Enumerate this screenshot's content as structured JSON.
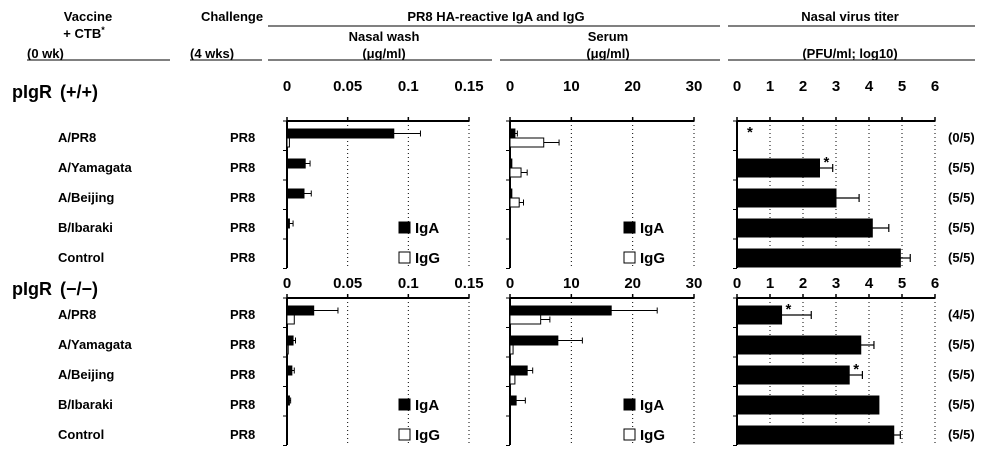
{
  "headers": {
    "vaccine_line1": "Vaccine",
    "vaccine_line2": "+ CTB",
    "vaccine_sup": "*",
    "vaccine_line3": "(0 wk)",
    "challenge_line1": "Challenge",
    "challenge_line3": "(4 wks)",
    "reactive_title": "PR8 HA-reactive IgA and IgG",
    "nasal_wash_title": "Nasal wash",
    "nasal_wash_unit": "(μg/ml)",
    "serum_title": "Serum",
    "serum_unit": "(μg/ml)",
    "virus_title": "Nasal virus titer",
    "virus_unit": "(PFU/ml; log10)"
  },
  "chart_data": {
    "type": "bar",
    "orientation": "horizontal",
    "panels": [
      {
        "key": "nasal",
        "title": "Nasal wash",
        "unit": "(μg/ml)",
        "xlim": [
          0,
          0.15
        ],
        "ticks": [
          "0",
          "0.05",
          "0.1",
          "0.15"
        ],
        "legend": [
          "IgA",
          "IgG"
        ]
      },
      {
        "key": "serum",
        "title": "Serum",
        "unit": "(μg/ml)",
        "xlim": [
          0,
          30
        ],
        "ticks": [
          "0",
          "10",
          "20",
          "30"
        ],
        "legend": [
          "IgA",
          "IgG"
        ]
      },
      {
        "key": "titer",
        "title": "Nasal virus titer",
        "unit": "(PFU/ml; log10)",
        "xlim": [
          0,
          6
        ],
        "ticks": [
          "0",
          "1",
          "2",
          "3",
          "4",
          "5",
          "6"
        ]
      }
    ],
    "groups": [
      {
        "label": "pIgR",
        "genotype": "(+/+)",
        "rows": [
          {
            "vaccine": "A/PR8",
            "challenge": "PR8",
            "nasal_iga": 0.088,
            "nasal_iga_err": 0.022,
            "nasal_igg": 0.002,
            "nasal_igg_err": 0.0,
            "serum_iga": 0.8,
            "serum_iga_err": 0.4,
            "serum_igg": 5.5,
            "serum_igg_err": 2.5,
            "titer": 0.0,
            "titer_err": 0.0,
            "titer_sig": "*",
            "fraction": "(0/5)"
          },
          {
            "vaccine": "A/Yamagata",
            "challenge": "PR8",
            "nasal_iga": 0.015,
            "nasal_iga_err": 0.004,
            "nasal_igg": 0.0,
            "nasal_igg_err": 0.0,
            "serum_iga": 0.3,
            "serum_iga_err": 0.0,
            "serum_igg": 1.8,
            "serum_igg_err": 1.0,
            "titer": 2.5,
            "titer_err": 0.4,
            "titer_sig": "*",
            "fraction": "(5/5)"
          },
          {
            "vaccine": "A/Beijing",
            "challenge": "PR8",
            "nasal_iga": 0.014,
            "nasal_iga_err": 0.006,
            "nasal_igg": 0.0,
            "nasal_igg_err": 0.0,
            "serum_iga": 0.3,
            "serum_iga_err": 0.0,
            "serum_igg": 1.5,
            "serum_igg_err": 0.7,
            "titer": 3.0,
            "titer_err": 0.7,
            "titer_sig": "",
            "fraction": "(5/5)"
          },
          {
            "vaccine": "B/Ibaraki",
            "challenge": "PR8",
            "nasal_iga": 0.002,
            "nasal_iga_err": 0.003,
            "nasal_igg": 0.0,
            "nasal_igg_err": 0.0,
            "serum_iga": 0.0,
            "serum_iga_err": 0.0,
            "serum_igg": 0.0,
            "serum_igg_err": 0.0,
            "titer": 4.1,
            "titer_err": 0.5,
            "titer_sig": "",
            "fraction": "(5/5)"
          },
          {
            "vaccine": "Control",
            "challenge": "PR8",
            "nasal_iga": 0.0,
            "nasal_iga_err": 0.0,
            "nasal_igg": 0.0,
            "nasal_igg_err": 0.0,
            "serum_iga": 0.0,
            "serum_iga_err": 0.0,
            "serum_igg": 0.0,
            "serum_igg_err": 0.0,
            "titer": 4.95,
            "titer_err": 0.3,
            "titer_sig": "",
            "fraction": "(5/5)"
          }
        ]
      },
      {
        "label": "pIgR",
        "genotype": "(−/−)",
        "rows": [
          {
            "vaccine": "A/PR8",
            "challenge": "PR8",
            "nasal_iga": 0.022,
            "nasal_iga_err": 0.02,
            "nasal_igg": 0.006,
            "nasal_igg_err": 0.0,
            "serum_iga": 16.5,
            "serum_iga_err": 7.5,
            "serum_igg": 5.0,
            "serum_igg_err": 1.5,
            "titer": 1.35,
            "titer_err": 0.9,
            "titer_sig": "*",
            "fraction": "(4/5)"
          },
          {
            "vaccine": "A/Yamagata",
            "challenge": "PR8",
            "nasal_iga": 0.005,
            "nasal_iga_err": 0.002,
            "nasal_igg": 0.001,
            "nasal_igg_err": 0.0,
            "serum_iga": 7.8,
            "serum_iga_err": 4.0,
            "serum_igg": 0.5,
            "serum_igg_err": 0.0,
            "titer": 3.75,
            "titer_err": 0.4,
            "titer_sig": "",
            "fraction": "(5/5)"
          },
          {
            "vaccine": "A/Beijing",
            "challenge": "PR8",
            "nasal_iga": 0.004,
            "nasal_iga_err": 0.002,
            "nasal_igg": 0.0,
            "nasal_igg_err": 0.0,
            "serum_iga": 2.8,
            "serum_iga_err": 0.9,
            "serum_igg": 0.8,
            "serum_igg_err": 0.0,
            "titer": 3.4,
            "titer_err": 0.4,
            "titer_sig": "*",
            "fraction": "(5/5)"
          },
          {
            "vaccine": "B/Ibaraki",
            "challenge": "PR8",
            "nasal_iga": 0.002,
            "nasal_iga_err": 0.001,
            "nasal_igg": 0.0,
            "nasal_igg_err": 0.0,
            "serum_iga": 1.0,
            "serum_iga_err": 1.5,
            "serum_igg": 0.0,
            "serum_igg_err": 0.0,
            "titer": 4.3,
            "titer_err": 0.0,
            "titer_sig": "",
            "fraction": "(5/5)"
          },
          {
            "vaccine": "Control",
            "challenge": "PR8",
            "nasal_iga": 0.0,
            "nasal_iga_err": 0.0,
            "nasal_igg": 0.0,
            "nasal_igg_err": 0.0,
            "serum_iga": 0.0,
            "serum_iga_err": 0.0,
            "serum_igg": 0.0,
            "serum_igg_err": 0.0,
            "titer": 4.75,
            "titer_err": 0.2,
            "titer_sig": "",
            "fraction": "(5/5)"
          }
        ]
      }
    ],
    "colors": {
      "iga": "#000000",
      "igg": "#ffffff",
      "titer": "#000000",
      "grid": "#000000"
    },
    "grid": true,
    "legend_position": "bottom-right"
  }
}
